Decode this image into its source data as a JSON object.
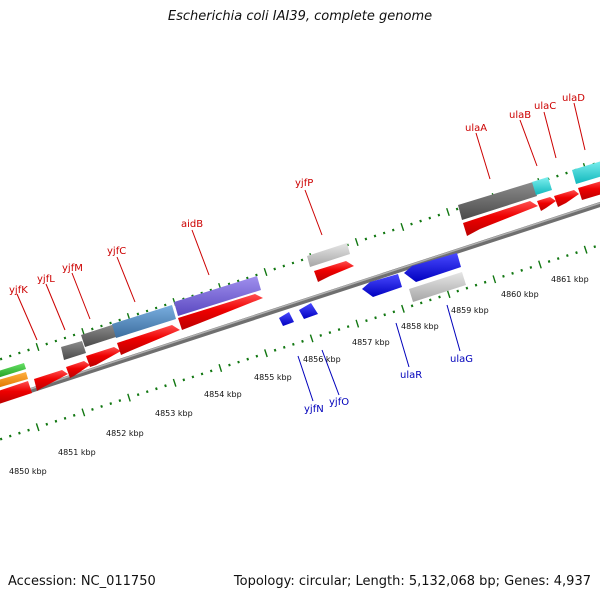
{
  "title": "Escherichia coli IAI39, complete genome",
  "accession": "Accession: NC_011750",
  "summary": "Topology: circular; Length: 5,132,068 bp; Genes: 4,937",
  "colors": {
    "forward_label": "#cc0000",
    "reverse_label": "#0000bb",
    "tick": "#117711",
    "backbone": "#8a8a8a"
  },
  "scale_labels": [
    "4850 kbp",
    "4851 kbp",
    "4852 kbp",
    "4853 kbp",
    "4854 kbp",
    "4855 kbp",
    "4856 kbp",
    "4857 kbp",
    "4858 kbp",
    "4859 kbp",
    "4860 kbp",
    "4861 kbp"
  ],
  "forward_labels": [
    "yjfK",
    "yjfL",
    "yjfM",
    "yjfC",
    "aidB",
    "yjfP",
    "ulaA",
    "ulaB",
    "ulaC",
    "ulaD"
  ],
  "reverse_labels": [
    "yjfN",
    "yjfO",
    "ulaR",
    "ulaG"
  ]
}
